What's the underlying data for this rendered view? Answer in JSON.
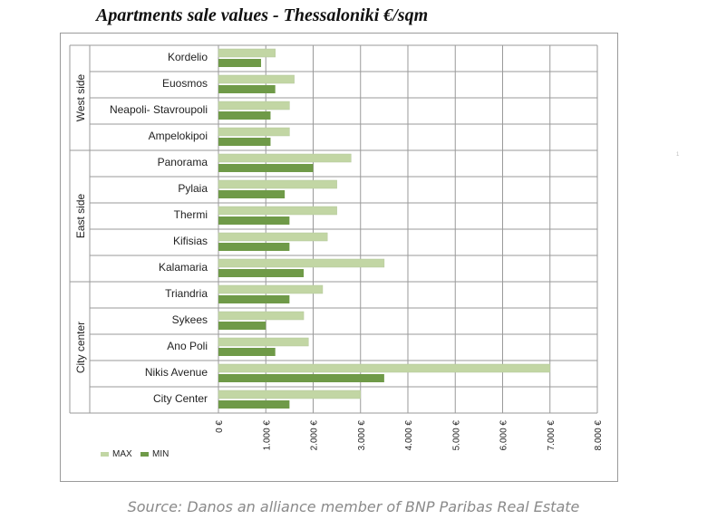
{
  "title": "Apartments sale values - Thessaloniki €/sqm",
  "source": "Source: Danos an alliance member of BNP Paribas Real Estate",
  "side_mark": "1",
  "colors": {
    "max": "#c2d6a4",
    "min": "#6f9a48",
    "grid": "#9a9a9a"
  },
  "chart_data": {
    "type": "bar",
    "orientation": "horizontal",
    "title": "Apartments sale values - Thessaloniki €/sqm",
    "xlim": [
      0,
      8000
    ],
    "x_ticks": [
      0,
      1000,
      2000,
      3000,
      4000,
      5000,
      6000,
      7000,
      8000
    ],
    "x_tick_labels": [
      "0 €",
      "1.000 €",
      "2.000 €",
      "3.000 €",
      "4.000 €",
      "5.000 €",
      "6.000 €",
      "7.000 €",
      "8.000 €"
    ],
    "grid": true,
    "legend": {
      "position": "bottom-left",
      "entries": [
        "MAX",
        "MIN"
      ]
    },
    "groups": [
      {
        "name": "West side",
        "categories": [
          "Kordelio",
          "Euosmos",
          "Neapoli- Stavroupoli",
          "Ampelokipoi"
        ]
      },
      {
        "name": "East side",
        "categories": [
          "Panorama",
          "Pylaia",
          "Thermi",
          "Kifisias",
          "Kalamaria"
        ]
      },
      {
        "name": "City center",
        "categories": [
          "Triandria",
          "Sykees",
          "Ano Poli",
          "Nikis Avenue",
          "City Center"
        ]
      }
    ],
    "categories": [
      "Kordelio",
      "Euosmos",
      "Neapoli- Stavroupoli",
      "Ampelokipoi",
      "Panorama",
      "Pylaia",
      "Thermi",
      "Kifisias",
      "Kalamaria",
      "Triandria",
      "Sykees",
      "Ano Poli",
      "Nikis Avenue",
      "City Center"
    ],
    "series": [
      {
        "name": "MAX",
        "values": [
          1200,
          1600,
          1500,
          1500,
          2800,
          2500,
          2500,
          2300,
          3500,
          2200,
          1800,
          1900,
          7000,
          3000
        ]
      },
      {
        "name": "MIN",
        "values": [
          900,
          1200,
          1100,
          1100,
          2000,
          1400,
          1500,
          1500,
          1800,
          1500,
          1000,
          1200,
          3500,
          1500
        ]
      }
    ]
  }
}
